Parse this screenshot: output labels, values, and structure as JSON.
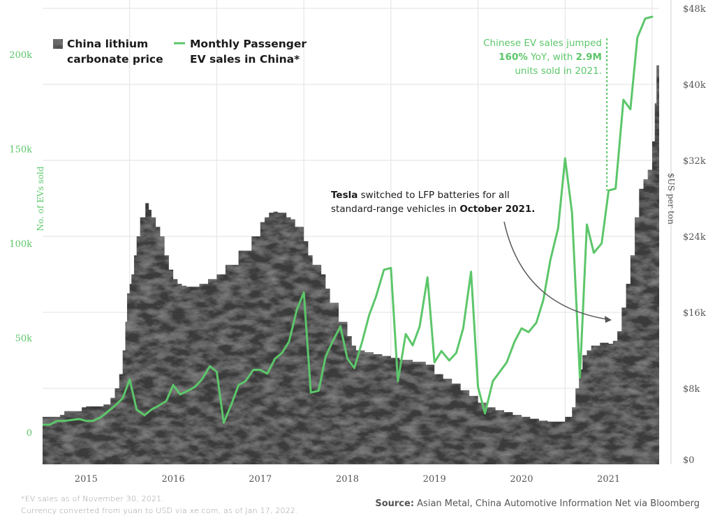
{
  "chart_data": {
    "type": "area+line",
    "legend": [
      {
        "label_line1": "China lithium",
        "label_line2": "carbonate price",
        "color": "#3d3d3d",
        "marker": "textured-square"
      },
      {
        "label_line1": "Monthly Passenger",
        "label_line2": "EV sales in China*",
        "color": "#5cc66a",
        "marker": "line"
      }
    ],
    "left_axis": {
      "label": "No. of EVs sold",
      "ticks": [
        "0",
        "50k",
        "100k",
        "150k",
        "200k"
      ],
      "tick_values": [
        0,
        50000,
        100000,
        150000,
        200000
      ],
      "color": "#5cc66a"
    },
    "right_axis": {
      "label": "$US per ton",
      "ticks": [
        "$0",
        "$8k",
        "$16k",
        "$24k",
        "$32k",
        "$40k",
        "$48k"
      ],
      "tick_values": [
        0,
        8000,
        16000,
        24000,
        32000,
        40000,
        48000
      ]
    },
    "x_ticks": [
      "2015",
      "2016",
      "2017",
      "2018",
      "2019",
      "2020",
      "2021"
    ],
    "x_tick_values": [
      2015,
      2016,
      2017,
      2018,
      2019,
      2020,
      2021
    ],
    "x_range": [
      2014.5,
      2021.58
    ],
    "left_range": [
      -17000,
      220000
    ],
    "right_range": [
      0,
      48000
    ],
    "series": [
      {
        "name": "China lithium carbonate price",
        "axis": "right",
        "x": [
          2014.5,
          2014.7,
          2014.75,
          2014.95,
          2015.0,
          2015.2,
          2015.28,
          2015.33,
          2015.38,
          2015.42,
          2015.45,
          2015.47,
          2015.5,
          2015.52,
          2015.55,
          2015.58,
          2015.62,
          2015.68,
          2015.72,
          2015.75,
          2015.8,
          2015.85,
          2015.9,
          2015.95,
          2016.0,
          2016.05,
          2016.1,
          2016.15,
          2016.2,
          2016.3,
          2016.4,
          2016.5,
          2016.6,
          2016.75,
          2016.9,
          2017.0,
          2017.05,
          2017.1,
          2017.15,
          2017.2,
          2017.3,
          2017.35,
          2017.4,
          2017.5,
          2017.55,
          2017.6,
          2017.7,
          2017.75,
          2017.8,
          2017.9,
          2018.0,
          2018.05,
          2018.1,
          2018.2,
          2018.3,
          2018.4,
          2018.5,
          2018.6,
          2018.75,
          2018.9,
          2019.0,
          2019.1,
          2019.2,
          2019.3,
          2019.4,
          2019.5,
          2019.6,
          2019.7,
          2019.8,
          2019.9,
          2020.0,
          2020.1,
          2020.2,
          2020.3,
          2020.4,
          2020.5,
          2020.58,
          2020.62,
          2020.66,
          2020.7,
          2020.75,
          2020.8,
          2020.9,
          2021.0,
          2021.05,
          2021.1,
          2021.15,
          2021.2,
          2021.25,
          2021.3,
          2021.35,
          2021.4,
          2021.45,
          2021.5,
          2021.53,
          2021.55,
          2021.58
        ],
        "values": [
          5000,
          5200,
          5600,
          6000,
          6100,
          6300,
          7000,
          8000,
          9500,
          12000,
          15000,
          18000,
          19000,
          20000,
          22000,
          24000,
          26000,
          27500,
          26800,
          26000,
          25000,
          24000,
          22000,
          20500,
          19500,
          19000,
          18800,
          18700,
          18700,
          19000,
          19500,
          20000,
          21000,
          22500,
          24000,
          25500,
          26000,
          26500,
          26600,
          26500,
          26000,
          25800,
          25000,
          23500,
          22000,
          21000,
          20000,
          18500,
          17000,
          15000,
          13500,
          12500,
          12000,
          11800,
          11600,
          11400,
          11200,
          11000,
          10800,
          10500,
          9500,
          9000,
          8500,
          7800,
          7200,
          6500,
          6000,
          5700,
          5500,
          5200,
          5000,
          4800,
          4600,
          4500,
          4500,
          5000,
          6000,
          8000,
          10000,
          11500,
          12000,
          12500,
          12800,
          12700,
          13000,
          14000,
          16500,
          19000,
          22000,
          26000,
          29000,
          30000,
          31000,
          34000,
          38000,
          42000,
          45000
        ]
      },
      {
        "name": "Monthly Passenger EV sales in China",
        "axis": "left",
        "x": [
          2014.5,
          2014.58,
          2014.67,
          2014.75,
          2014.83,
          2014.92,
          2015.0,
          2015.08,
          2015.17,
          2015.25,
          2015.33,
          2015.42,
          2015.5,
          2015.58,
          2015.67,
          2015.75,
          2015.83,
          2015.92,
          2016.0,
          2016.08,
          2016.17,
          2016.25,
          2016.33,
          2016.42,
          2016.5,
          2016.58,
          2016.67,
          2016.75,
          2016.83,
          2016.92,
          2017.0,
          2017.08,
          2017.17,
          2017.25,
          2017.33,
          2017.42,
          2017.5,
          2017.58,
          2017.67,
          2017.75,
          2017.83,
          2017.92,
          2018.0,
          2018.08,
          2018.17,
          2018.25,
          2018.33,
          2018.42,
          2018.5,
          2018.58,
          2018.67,
          2018.75,
          2018.83,
          2018.92,
          2019.0,
          2019.08,
          2019.17,
          2019.25,
          2019.33,
          2019.42,
          2019.5,
          2019.58,
          2019.67,
          2019.75,
          2019.83,
          2019.92,
          2020.0,
          2020.08,
          2020.17,
          2020.25,
          2020.33,
          2020.42,
          2020.5,
          2020.58,
          2020.67,
          2020.75,
          2020.83,
          2020.92,
          2021.0,
          2021.08,
          2021.17,
          2021.25,
          2021.33,
          2021.42,
          2021.5
        ],
        "values": [
          4000,
          4000,
          6000,
          6000,
          6500,
          7000,
          6000,
          6000,
          8000,
          11000,
          14000,
          18000,
          28000,
          12000,
          9000,
          12000,
          14000,
          16500,
          25000,
          20000,
          22000,
          24000,
          28000,
          35000,
          32000,
          5000,
          15000,
          25000,
          27000,
          33000,
          33000,
          31000,
          39000,
          42000,
          48000,
          65000,
          74000,
          21000,
          22000,
          40000,
          48000,
          56000,
          39000,
          34000,
          48000,
          62000,
          72000,
          86000,
          87000,
          27000,
          52000,
          46000,
          56000,
          82000,
          37000,
          43000,
          38000,
          42000,
          55000,
          85000,
          24000,
          10000,
          27000,
          32000,
          37000,
          48000,
          55000,
          53000,
          58000,
          70000,
          91000,
          108000,
          145000,
          116000,
          29000,
          110000,
          95000,
          100000,
          128000,
          129000,
          176000,
          171000,
          209000,
          219000,
          220000
        ]
      }
    ],
    "annotations": [
      {
        "parts": [
          {
            "text": "Chinese EV sales jumped",
            "bold": false
          }
        ],
        "parts2": [
          {
            "text": "160%",
            "bold": true
          },
          {
            "text": " YoY, with ",
            "bold": false
          },
          {
            "text": "2.9M",
            "bold": true
          }
        ],
        "parts3": [
          {
            "text": "units sold in 2021.",
            "bold": false
          }
        ],
        "color": "#5cc66a"
      },
      {
        "parts": [
          {
            "text": "Tesla",
            "bold": true
          },
          {
            "text": " switched to LFP batteries for all",
            "bold": false
          }
        ],
        "parts2": [
          {
            "text": "standard-range vehicles in ",
            "bold": false
          },
          {
            "text": "October 2021.",
            "bold": true
          }
        ],
        "color": "#1a1a1a"
      }
    ]
  },
  "footnotes": {
    "line1": "*EV sales as of November 30, 2021.",
    "line2": "Currency converted from yuan to USD via xe.com, as of Jan 17, 2022.",
    "source_label": "Source:",
    "source_text": " Asian Metal, China Automotive Information Net via Bloomberg"
  },
  "colors": {
    "ev_line": "#5cc66a",
    "area_fill": "#3a3a3a",
    "grid": "#e2e2e2",
    "axis_text": "#555555"
  }
}
